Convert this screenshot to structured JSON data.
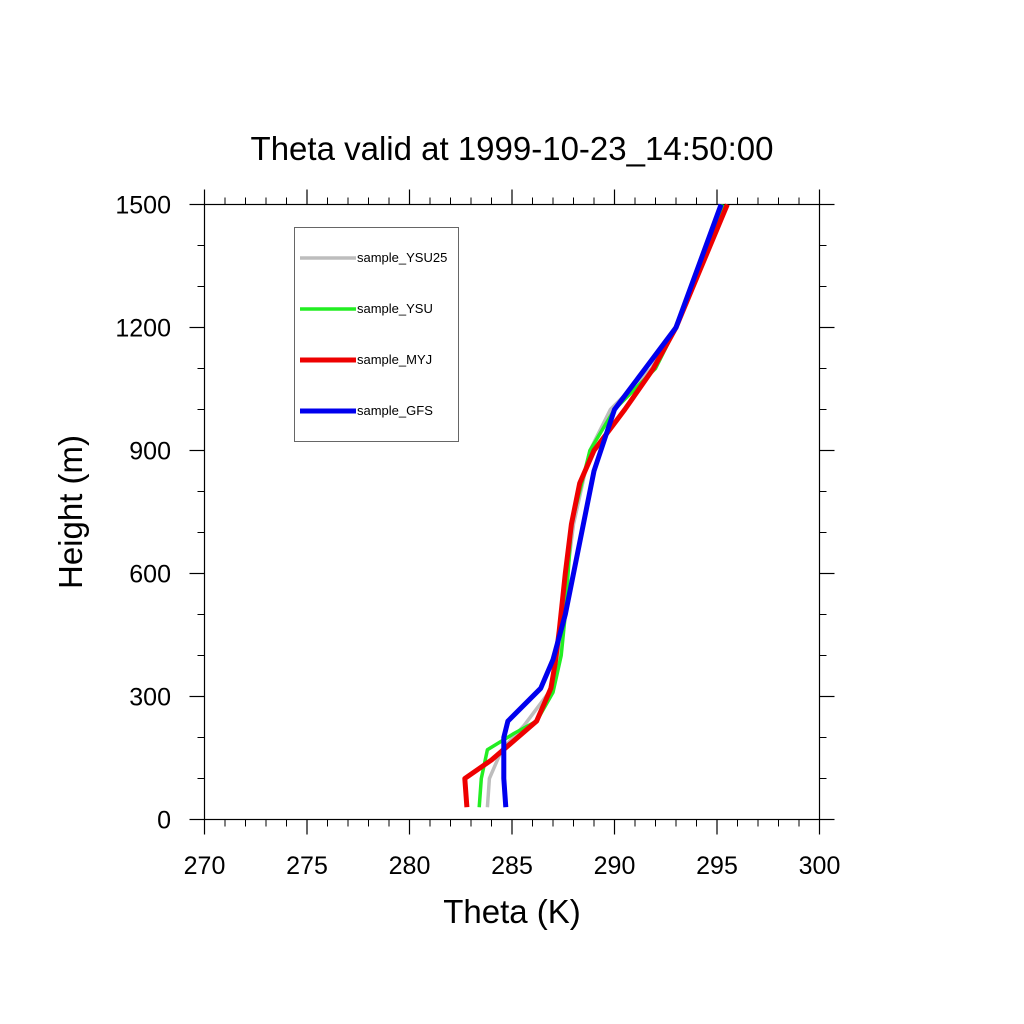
{
  "chart_data": {
    "type": "line",
    "title": "Theta valid at 1999-10-23_14:50:00",
    "xlabel": "Theta (K)",
    "ylabel": "Height (m)",
    "xlim": [
      270,
      300
    ],
    "ylim": [
      0,
      1500
    ],
    "xticks": [
      270,
      275,
      280,
      285,
      290,
      295,
      300
    ],
    "yticks": [
      0,
      300,
      600,
      900,
      1200,
      1500
    ],
    "grid": false,
    "legend_position": "top-left",
    "series": [
      {
        "name": "sample_YSU25",
        "color": "#bdbdbd",
        "x": [
          283.8,
          283.9,
          284.5,
          285.6,
          286.8,
          287.3,
          287.5,
          287.7,
          288.0,
          288.8,
          289.8,
          291.8,
          293.0,
          295.5
        ],
        "y": [
          30,
          100,
          170,
          230,
          310,
          400,
          500,
          600,
          720,
          900,
          1000,
          1100,
          1200,
          1500
        ]
      },
      {
        "name": "sample_YSU",
        "color": "#22ee22",
        "x": [
          283.4,
          283.5,
          283.8,
          285.1,
          286.2,
          287.0,
          287.4,
          287.6,
          287.9,
          288.8,
          290.0,
          292.0,
          293.0,
          295.3
        ],
        "y": [
          30,
          100,
          170,
          210,
          240,
          310,
          400,
          500,
          720,
          900,
          1000,
          1100,
          1200,
          1500
        ]
      },
      {
        "name": "sample_MYJ",
        "color": "#ee0000",
        "x": [
          282.8,
          282.7,
          284.0,
          286.2,
          286.9,
          287.1,
          287.3,
          287.6,
          287.9,
          288.3,
          289.0,
          290.5,
          291.9,
          293.0,
          295.5
        ],
        "y": [
          30,
          100,
          145,
          240,
          320,
          380,
          460,
          600,
          720,
          820,
          900,
          1000,
          1100,
          1200,
          1500
        ]
      },
      {
        "name": "sample_GFS",
        "color": "#0000ee",
        "x": [
          284.7,
          284.6,
          284.6,
          284.8,
          286.4,
          287.0,
          287.6,
          288.2,
          289.0,
          290.0,
          291.5,
          293.0,
          295.2
        ],
        "y": [
          30,
          100,
          200,
          240,
          320,
          390,
          500,
          650,
          850,
          1000,
          1100,
          1200,
          1500
        ]
      }
    ]
  }
}
